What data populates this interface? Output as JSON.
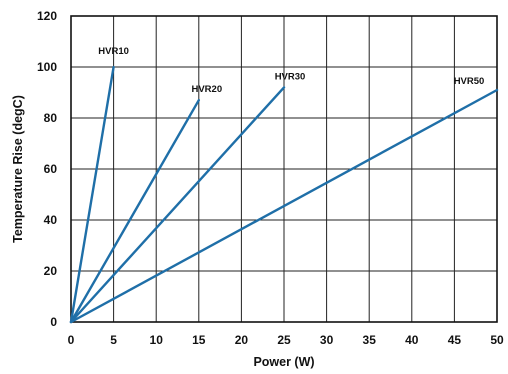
{
  "chart_data": {
    "type": "line",
    "title": "",
    "xlabel": "Power (W)",
    "ylabel": "Temperature Rise (degC)",
    "xlim": [
      0,
      50
    ],
    "ylim": [
      0,
      120
    ],
    "xticks": [
      "0",
      "5",
      "10",
      "15",
      "20",
      "25",
      "30",
      "35",
      "40",
      "45",
      "50"
    ],
    "yticks": [
      "0",
      "20",
      "40",
      "60",
      "80",
      "100",
      "120"
    ],
    "grid": true,
    "line_color": "#1f6fa8",
    "series": [
      {
        "name": "HVR10",
        "x": [
          0,
          5
        ],
        "y": [
          0,
          100
        ]
      },
      {
        "name": "HVR20",
        "x": [
          0,
          15
        ],
        "y": [
          0,
          87
        ]
      },
      {
        "name": "HVR30",
        "x": [
          0,
          25
        ],
        "y": [
          0,
          92
        ]
      },
      {
        "name": "HVR50",
        "x": [
          0,
          50
        ],
        "y": [
          0,
          91
        ]
      }
    ]
  }
}
